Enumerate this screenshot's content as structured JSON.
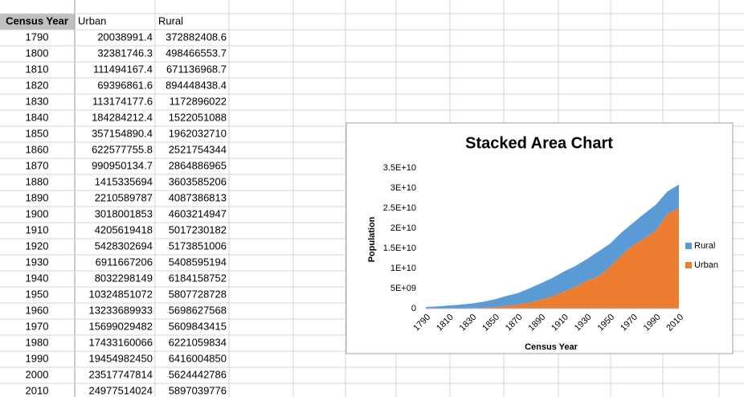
{
  "table": {
    "header": [
      "Census Year",
      "Urban",
      "Rural"
    ],
    "rows": [
      [
        1790,
        20038991.4,
        372882408.6
      ],
      [
        1800,
        32381746.3,
        498466553.7
      ],
      [
        1810,
        111494167.4,
        671136968.7
      ],
      [
        1820,
        69396861.6,
        894448438.4
      ],
      [
        1830,
        113174177.6,
        1172896022
      ],
      [
        1840,
        184284212.4,
        1522051088
      ],
      [
        1850,
        357154890.4,
        1962032710
      ],
      [
        1860,
        622577755.8,
        2521754344
      ],
      [
        1870,
        990950134.7,
        2864886965
      ],
      [
        1880,
        1415335694,
        3603585206
      ],
      [
        1890,
        2210589787,
        4087386813
      ],
      [
        1900,
        3018001853,
        4603214947
      ],
      [
        1910,
        4205619418,
        5017230182
      ],
      [
        1920,
        5428302694,
        5173851006
      ],
      [
        1930,
        6911667206,
        5408595194
      ],
      [
        1940,
        8032298149,
        6184158752
      ],
      [
        1950,
        10324851072,
        5807728728
      ],
      [
        1960,
        13233689933,
        5698627568
      ],
      [
        1970,
        15699029482,
        5609843415
      ],
      [
        1980,
        17433160066,
        6221059834
      ],
      [
        1990,
        19454982450,
        6416004850
      ],
      [
        2000,
        23517747814,
        5624442786
      ],
      [
        2010,
        24977514024,
        5897039776
      ]
    ]
  },
  "chart_data": {
    "type": "area",
    "stacked": true,
    "title": "Stacked Area Chart",
    "x_label": "Census Year",
    "y_label": "Population",
    "categories": [
      "1790",
      null,
      "1810",
      null,
      "1830",
      null,
      "1850",
      null,
      "1870",
      null,
      "1890",
      null,
      "1910",
      null,
      "1930",
      null,
      "1950",
      null,
      "1970",
      null,
      "1990",
      null,
      "2010"
    ],
    "series": [
      {
        "name": "Urban",
        "color": "#ed7d31",
        "values": [
          20038991.4,
          32381746.3,
          111494167.4,
          69396861.6,
          113174177.6,
          184284212.4,
          357154890.4,
          622577755.8,
          990950134.7,
          1415335694,
          2210589787,
          3018001853,
          4205619418,
          5428302694,
          6911667206,
          8032298149,
          10324851072,
          13233689933,
          15699029482,
          17433160066,
          19454982450,
          23517747814,
          24977514024
        ]
      },
      {
        "name": "Rural",
        "color": "#5b9bd5",
        "values": [
          372882408.6,
          498466553.7,
          671136968.7,
          894448438.4,
          1172896022,
          1522051088,
          1962032710,
          2521754344,
          2864886965,
          3603585206,
          4087386813,
          4603214947,
          5017230182,
          5173851006,
          5408595194,
          6184158752,
          5807728728,
          5698627568,
          5609843415,
          6221059834,
          6416004850,
          5624442786,
          5897039776
        ]
      }
    ],
    "ylim": [
      0,
      35000000000
    ],
    "yticks": [
      0,
      {
        "value": 5000000000,
        "label": "5E+09"
      },
      {
        "value": 10000000000,
        "label": "1E+10"
      },
      {
        "value": 15000000000,
        "label": "1.5E+10"
      },
      {
        "value": 20000000000,
        "label": "2E+10"
      },
      {
        "value": 25000000000,
        "label": "2.5E+10"
      },
      {
        "value": 30000000000,
        "label": "3E+10"
      },
      {
        "value": 35000000000,
        "label": "3.5E+10"
      }
    ],
    "legend": "right"
  }
}
